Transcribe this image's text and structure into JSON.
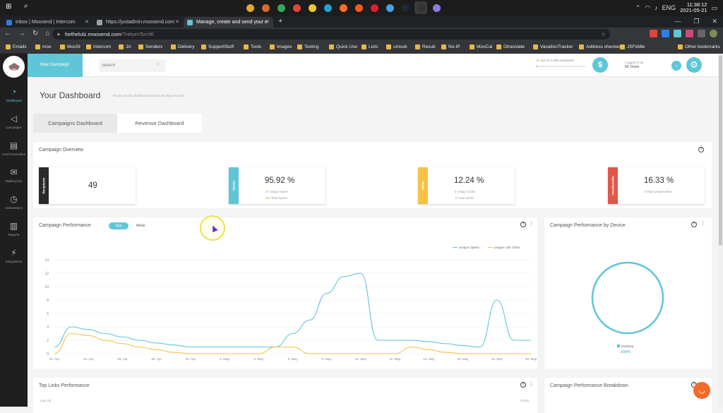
{
  "taskbar": {
    "clock_time": "11:38:12",
    "clock_date": "2021-05-21",
    "lang": "ENG",
    "apps": [
      {
        "icon": "files-icon",
        "color": "#e0a82e"
      },
      {
        "icon": "pencil-icon",
        "color": "#d86a2a"
      },
      {
        "icon": "chrome-icon",
        "color": "#34a853"
      },
      {
        "icon": "chrome-icon",
        "color": "#e0453a"
      },
      {
        "icon": "notes-icon",
        "color": "#f3c72b"
      },
      {
        "icon": "edge-icon",
        "color": "#1aa3d8"
      },
      {
        "icon": "firefox-icon",
        "color": "#ff6d28"
      },
      {
        "icon": "app-icon",
        "color": "#ff5722"
      },
      {
        "icon": "opera-icon",
        "color": "#e11d2d"
      },
      {
        "icon": "tool-icon",
        "color": "#4b9fe0"
      },
      {
        "icon": "steam-icon",
        "color": "#1b2838"
      },
      {
        "icon": "obs-icon",
        "color": "#333333"
      },
      {
        "icon": "app-icon",
        "color": "#8c7ae6"
      }
    ]
  },
  "browser": {
    "tabs": [
      {
        "label": "Inbox | Moosend | Intercom",
        "color": "#2d7fe6"
      },
      {
        "label": "https://justadmin.moosend.com",
        "color": "#9aa0a6"
      },
      {
        "label": "Manage, create and send your e",
        "color": "#5fc6d8"
      }
    ],
    "url_host": "forthelulz.moosend.com",
    "url_path": "/?returnTo=/#/",
    "bookmarks": [
      "Emails",
      "moo",
      "MooSt",
      "Intercom",
      "JA",
      "Senders",
      "Delivery",
      "SupportStuff",
      "Tools",
      "Images",
      "Testing",
      "Quick Use",
      "Lists",
      "umsub",
      "Resub",
      "No-IP",
      "MooCal",
      "Gtranslate",
      "VacationTracker",
      "Address checker",
      "JSFiddle",
      "Other bookmarks"
    ]
  },
  "nav": {
    "items": [
      {
        "label": "Dashboard",
        "icon": "gauge-icon"
      },
      {
        "label": "Campaigns",
        "icon": "megaphone-icon"
      },
      {
        "label": "Lead Generation",
        "icon": "form-icon"
      },
      {
        "label": "Mailing lists",
        "icon": "envelope-icon"
      },
      {
        "label": "Automations",
        "icon": "clock-icon"
      },
      {
        "label": "Reports",
        "icon": "bar-chart-icon"
      },
      {
        "label": "Integrations",
        "icon": "plug-icon"
      }
    ]
  },
  "topbar": {
    "new_campaign": "New Campaign",
    "search_placeholder": "Search",
    "recipients_used": 21,
    "recipients_text": "out of 1,000 recipients",
    "recipients_fraction": 0.021,
    "logged_in_label": "Logged in as",
    "user_name": "Mr Dunie"
  },
  "dashboard": {
    "title": "Your Dashboard",
    "subtitle": "All data on this dashboard are last 30 days records",
    "tabs": [
      "Campaigns Dashboard",
      "Revenue Dashboard"
    ]
  },
  "overview": {
    "title": "Campaign Overview",
    "stats": [
      {
        "label": "Recipients",
        "value": "49",
        "line1_num": "",
        "line1": "",
        "line2_num": "",
        "line2": "",
        "color": "#2a2a2a"
      },
      {
        "label": "Opens",
        "value": "95.92 %",
        "line1_num": "47",
        "line1": "Unique Opens",
        "line2_num": "102",
        "line2": "Total Opens",
        "color": "#5fc6d8"
      },
      {
        "label": "Clicks",
        "value": "12.24 %",
        "line1_num": "6",
        "line1": "Unique Clicks",
        "line2_num": "11",
        "line2": "Total Clicks",
        "color": "#f5c242"
      },
      {
        "label": "Unsubscribe",
        "value": "16.33 %",
        "line1_num": "8",
        "line1": "Total Unsubscribes",
        "line2_num": "",
        "line2": "",
        "color": "#e0574a"
      }
    ]
  },
  "performance": {
    "title": "Campaign Performance",
    "day_label": "Day",
    "week_label": "Week"
  },
  "device": {
    "title": "Campaign Performance by Device",
    "legend_label": "Desktop",
    "legend_pct": "100%",
    "share": 1.0
  },
  "toplinks": {
    "title": "Top Links Performance",
    "col_url": "Link Url",
    "col_clicks": "Clicks"
  },
  "breakdown": {
    "title": "Campaign Performance Breakdown"
  },
  "chart_data": {
    "type": "line",
    "x": [
      "22. Apr",
      "23. Apr",
      "24. Apr",
      "25. Apr",
      "26. Apr",
      "27. Apr",
      "28. Apr",
      "29. Apr",
      "30. Apr",
      "1. May",
      "2. May",
      "3. May",
      "4. May",
      "5. May",
      "6. May",
      "7. May",
      "8. May",
      "9. May",
      "10. May",
      "11. May",
      "12. May",
      "13. May",
      "14. May",
      "15. May",
      "16. May",
      "17. May",
      "18. May",
      "19. May",
      "20. May"
    ],
    "xticks": [
      "22. Apr",
      "24. Apr",
      "26. Apr",
      "28. Apr",
      "30. Apr",
      "2. May",
      "4. May",
      "6. May",
      "8. May",
      "10. May",
      "12. May",
      "14. May",
      "16. May",
      "18. May",
      "20. May"
    ],
    "series": [
      {
        "name": "Unique Opens",
        "color": "#5fc6d8",
        "values": [
          1,
          4,
          3.6,
          3,
          2.5,
          2,
          1.6,
          1.3,
          1,
          1,
          1,
          1,
          1,
          1,
          3,
          5,
          9,
          11.5,
          12,
          2,
          2,
          2,
          1.8,
          1.5,
          1.2,
          1,
          8,
          2,
          2
        ]
      },
      {
        "name": "Unique Link Clicks",
        "color": "#f0c24a",
        "values": [
          0,
          3,
          2.7,
          2,
          1.5,
          1,
          0.6,
          0.2,
          0,
          0,
          0,
          0,
          0,
          1,
          1,
          0,
          0,
          0,
          0,
          0,
          0,
          1,
          0.6,
          0.2,
          0,
          0,
          0,
          0,
          0
        ]
      }
    ],
    "ylim": [
      0,
      14
    ],
    "yticks": [
      0,
      2,
      4,
      6,
      8,
      10,
      12,
      14
    ],
    "grid": true,
    "legend": "top-right"
  }
}
